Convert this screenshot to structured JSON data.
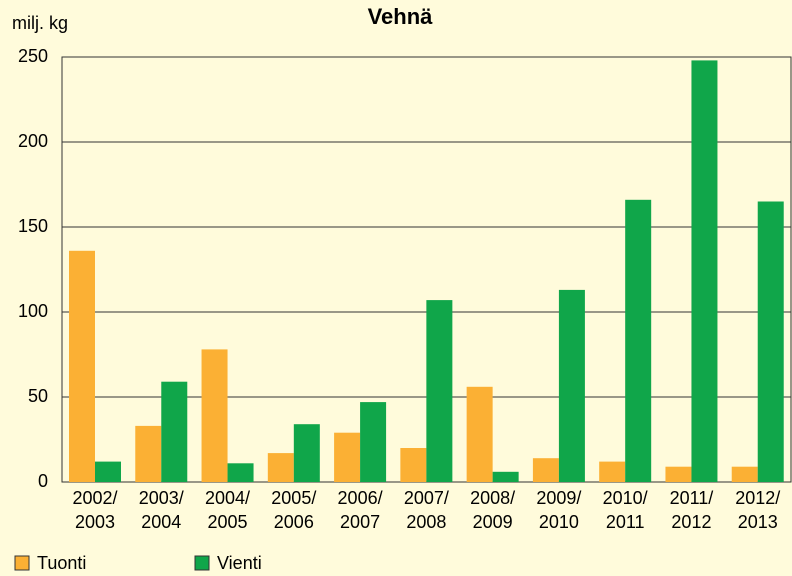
{
  "chart_data": {
    "type": "bar",
    "title": "Vehnä",
    "y_label": "milj. kg",
    "categories": [
      "2002/\n2003",
      "2003/\n2004",
      "2004/\n2005",
      "2005/\n2006",
      "2006/\n2007",
      "2007/\n2008",
      "2008/\n2009",
      "2009/\n2010",
      "2010/\n2011",
      "2011/\n2012",
      "2012/\n2013"
    ],
    "series": [
      {
        "name": "Tuonti",
        "color": "#fbb034",
        "values": [
          136,
          33,
          78,
          17,
          29,
          20,
          56,
          14,
          12,
          9,
          9
        ]
      },
      {
        "name": "Vienti",
        "color": "#10a64a",
        "values": [
          12,
          59,
          11,
          34,
          47,
          107,
          6,
          113,
          166,
          248,
          165
        ]
      }
    ],
    "ylim": [
      0,
      250
    ],
    "yticks": [
      0,
      50,
      100,
      150,
      200,
      250
    ],
    "grid": true,
    "legend": "bottom-left"
  }
}
